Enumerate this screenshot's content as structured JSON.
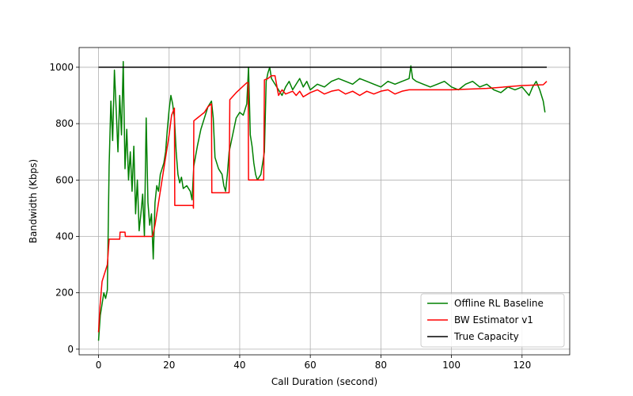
{
  "chart_data": {
    "type": "line",
    "title": "",
    "xlabel": "Call Duration (second)",
    "ylabel": "Bandwidth (Kbps)",
    "xlim": [
      -5.5,
      133.5
    ],
    "ylim": [
      -20,
      1070
    ],
    "xticks": [
      0,
      20,
      40,
      60,
      80,
      100,
      120
    ],
    "yticks": [
      0,
      200,
      400,
      600,
      800,
      1000
    ],
    "grid": true,
    "legend": "bottom-right",
    "series": [
      {
        "name": "Offline RL Baseline",
        "color": "#008000",
        "points": [
          [
            0,
            30
          ],
          [
            0.5,
            120
          ],
          [
            1,
            160
          ],
          [
            1.5,
            200
          ],
          [
            2,
            180
          ],
          [
            2.5,
            210
          ],
          [
            3,
            650
          ],
          [
            3.5,
            880
          ],
          [
            4,
            740
          ],
          [
            4.5,
            990
          ],
          [
            5,
            850
          ],
          [
            5.5,
            700
          ],
          [
            6,
            900
          ],
          [
            6.5,
            760
          ],
          [
            7,
            1020
          ],
          [
            7.5,
            640
          ],
          [
            8,
            780
          ],
          [
            8.5,
            600
          ],
          [
            9,
            700
          ],
          [
            9.5,
            560
          ],
          [
            10,
            720
          ],
          [
            10.5,
            480
          ],
          [
            11,
            600
          ],
          [
            11.5,
            420
          ],
          [
            12,
            480
          ],
          [
            12.5,
            550
          ],
          [
            13,
            400
          ],
          [
            13.5,
            820
          ],
          [
            14,
            520
          ],
          [
            14.5,
            440
          ],
          [
            15,
            480
          ],
          [
            15.5,
            320
          ],
          [
            16,
            520
          ],
          [
            16.5,
            580
          ],
          [
            17,
            560
          ],
          [
            17.5,
            620
          ],
          [
            18,
            640
          ],
          [
            18.5,
            660
          ],
          [
            19,
            700
          ],
          [
            19.5,
            780
          ],
          [
            20,
            850
          ],
          [
            20.5,
            900
          ],
          [
            21,
            870
          ],
          [
            21.5,
            820
          ],
          [
            22,
            700
          ],
          [
            22.5,
            620
          ],
          [
            23,
            590
          ],
          [
            23.5,
            610
          ],
          [
            24,
            570
          ],
          [
            25,
            580
          ],
          [
            26,
            560
          ],
          [
            26.5,
            530
          ],
          [
            27,
            650
          ],
          [
            28,
            720
          ],
          [
            29,
            780
          ],
          [
            30,
            820
          ],
          [
            31,
            860
          ],
          [
            32,
            880
          ],
          [
            32.5,
            820
          ],
          [
            33,
            680
          ],
          [
            34,
            640
          ],
          [
            35,
            620
          ],
          [
            35.5,
            580
          ],
          [
            36,
            560
          ],
          [
            36.5,
            620
          ],
          [
            37,
            700
          ],
          [
            38,
            760
          ],
          [
            39,
            820
          ],
          [
            40,
            840
          ],
          [
            41,
            830
          ],
          [
            42,
            870
          ],
          [
            42.5,
            1000
          ],
          [
            43,
            760
          ],
          [
            43.5,
            720
          ],
          [
            44,
            660
          ],
          [
            44.5,
            620
          ],
          [
            45,
            600
          ],
          [
            46,
            620
          ],
          [
            47,
            700
          ],
          [
            47.5,
            950
          ],
          [
            48,
            980
          ],
          [
            48.5,
            1000
          ],
          [
            49,
            960
          ],
          [
            50,
            940
          ],
          [
            51,
            920
          ],
          [
            52,
            900
          ],
          [
            53,
            930
          ],
          [
            54,
            950
          ],
          [
            55,
            920
          ],
          [
            56,
            940
          ],
          [
            57,
            960
          ],
          [
            58,
            930
          ],
          [
            59,
            950
          ],
          [
            60,
            920
          ],
          [
            62,
            940
          ],
          [
            64,
            930
          ],
          [
            66,
            950
          ],
          [
            68,
            960
          ],
          [
            70,
            950
          ],
          [
            72,
            940
          ],
          [
            74,
            960
          ],
          [
            76,
            950
          ],
          [
            78,
            940
          ],
          [
            80,
            930
          ],
          [
            82,
            950
          ],
          [
            84,
            940
          ],
          [
            86,
            950
          ],
          [
            88,
            960
          ],
          [
            88.5,
            1005
          ],
          [
            89,
            960
          ],
          [
            90,
            950
          ],
          [
            92,
            940
          ],
          [
            94,
            930
          ],
          [
            96,
            940
          ],
          [
            98,
            950
          ],
          [
            100,
            930
          ],
          [
            102,
            920
          ],
          [
            104,
            940
          ],
          [
            106,
            950
          ],
          [
            108,
            930
          ],
          [
            110,
            940
          ],
          [
            112,
            920
          ],
          [
            114,
            910
          ],
          [
            116,
            930
          ],
          [
            118,
            920
          ],
          [
            120,
            930
          ],
          [
            122,
            900
          ],
          [
            123,
            930
          ],
          [
            124,
            950
          ],
          [
            125,
            920
          ],
          [
            126,
            880
          ],
          [
            126.5,
            840
          ]
        ]
      },
      {
        "name": "BW Estimator v1",
        "color": "#ff0000",
        "points": [
          [
            0,
            60
          ],
          [
            0.4,
            150
          ],
          [
            1,
            240
          ],
          [
            2.5,
            300
          ],
          [
            3,
            390
          ],
          [
            6,
            390
          ],
          [
            6.1,
            415
          ],
          [
            7.5,
            415
          ],
          [
            7.6,
            400
          ],
          [
            14,
            400
          ],
          [
            15.3,
            400
          ],
          [
            16,
            440
          ],
          [
            17,
            520
          ],
          [
            18,
            600
          ],
          [
            19,
            680
          ],
          [
            20,
            760
          ],
          [
            20.7,
            830
          ],
          [
            21.5,
            855
          ],
          [
            21.6,
            510
          ],
          [
            26.8,
            510
          ],
          [
            26.9,
            500
          ],
          [
            27,
            810
          ],
          [
            28,
            820
          ],
          [
            30,
            840
          ],
          [
            31,
            860
          ],
          [
            32,
            870
          ],
          [
            32.1,
            555
          ],
          [
            37,
            555
          ],
          [
            37.2,
            885
          ],
          [
            39,
            910
          ],
          [
            42,
            945
          ],
          [
            42.4,
            945
          ],
          [
            42.5,
            600
          ],
          [
            46.8,
            600
          ],
          [
            47,
            955
          ],
          [
            48,
            960
          ],
          [
            49,
            970
          ],
          [
            50,
            970
          ],
          [
            51,
            900
          ],
          [
            52,
            920
          ],
          [
            53,
            905
          ],
          [
            55,
            915
          ],
          [
            56,
            900
          ],
          [
            57,
            915
          ],
          [
            58,
            895
          ],
          [
            60,
            910
          ],
          [
            62,
            920
          ],
          [
            64,
            905
          ],
          [
            66,
            915
          ],
          [
            68,
            920
          ],
          [
            70,
            905
          ],
          [
            72,
            915
          ],
          [
            74,
            900
          ],
          [
            76,
            915
          ],
          [
            78,
            905
          ],
          [
            80,
            915
          ],
          [
            82,
            920
          ],
          [
            84,
            905
          ],
          [
            86,
            915
          ],
          [
            88,
            920
          ],
          [
            90,
            920
          ],
          [
            100,
            920
          ],
          [
            110,
            925
          ],
          [
            120,
            935
          ],
          [
            126,
            938
          ],
          [
            127,
            950
          ]
        ]
      },
      {
        "name": "True Capacity",
        "color": "#000000",
        "points": [
          [
            0,
            1000
          ],
          [
            127,
            1000
          ]
        ]
      }
    ]
  }
}
